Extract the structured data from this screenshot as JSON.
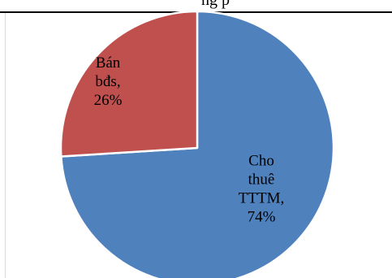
{
  "page": {
    "title_fragment": "ng p"
  },
  "chart_data": {
    "type": "pie",
    "title": "",
    "slices": [
      {
        "name": "Cho thuê TTTM",
        "value": 74,
        "label_lines": [
          "Cho",
          "thuê",
          "TTTM,",
          "74%"
        ],
        "color": "#4f81bd"
      },
      {
        "name": "Bán bđs",
        "value": 26,
        "label_lines": [
          "Bán",
          "bđs,",
          "26%"
        ],
        "color": "#c0504d"
      }
    ],
    "start_angle_deg": 0,
    "direction": "clockwise",
    "legend": "none",
    "data_labels": "inside"
  }
}
